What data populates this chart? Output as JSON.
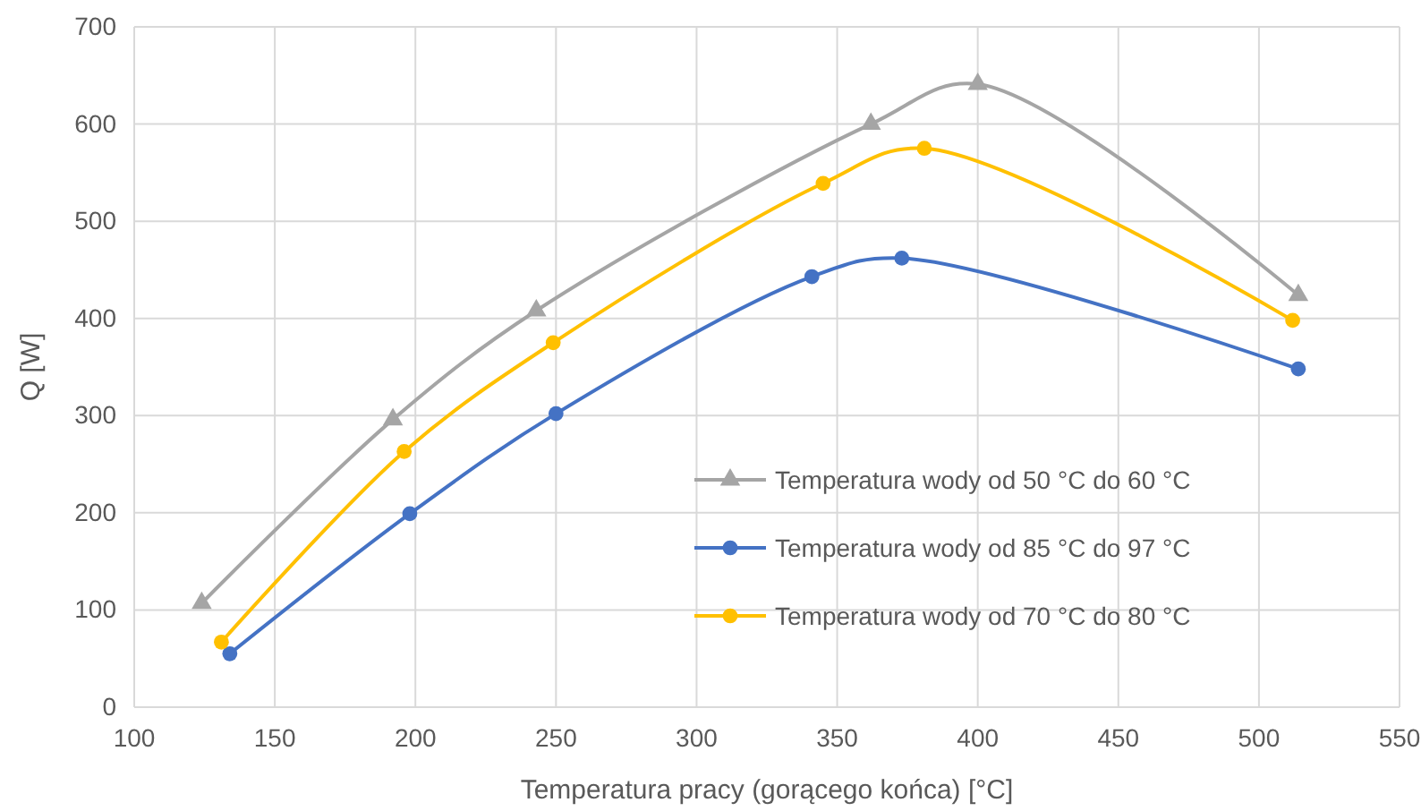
{
  "chart_data": {
    "type": "line",
    "xlabel": "Temperatura pracy (gorącego końca) [°C]",
    "ylabel": "Q [W]",
    "xlim": [
      100,
      550
    ],
    "xticks": [
      100,
      150,
      200,
      250,
      300,
      350,
      400,
      450,
      500,
      550
    ],
    "ylim": [
      0,
      700
    ],
    "yticks": [
      0,
      100,
      200,
      300,
      400,
      500,
      600,
      700
    ],
    "grid": true,
    "legend": "right",
    "line_style": "solid",
    "series": [
      {
        "name": "Temperatura wody od 50 °C do 60 °C",
        "color": "#a5a5a5",
        "marker": "triangle",
        "x": [
          124,
          192,
          243,
          362,
          400,
          514
        ],
        "values": [
          107,
          296,
          408,
          600,
          641,
          424
        ]
      },
      {
        "name": "Temperatura wody od 85 °C do 97 °C",
        "color": "#4472c4",
        "marker": "circle",
        "x": [
          134,
          198,
          250,
          341,
          373,
          514
        ],
        "values": [
          55,
          199,
          302,
          443,
          462,
          348
        ]
      },
      {
        "name": "Temperatura wody od 70 °C do 80 °C",
        "color": "#ffc000",
        "marker": "circle",
        "x": [
          131,
          196,
          249,
          345,
          381,
          512
        ],
        "values": [
          67,
          263,
          375,
          539,
          575,
          398
        ]
      }
    ]
  }
}
